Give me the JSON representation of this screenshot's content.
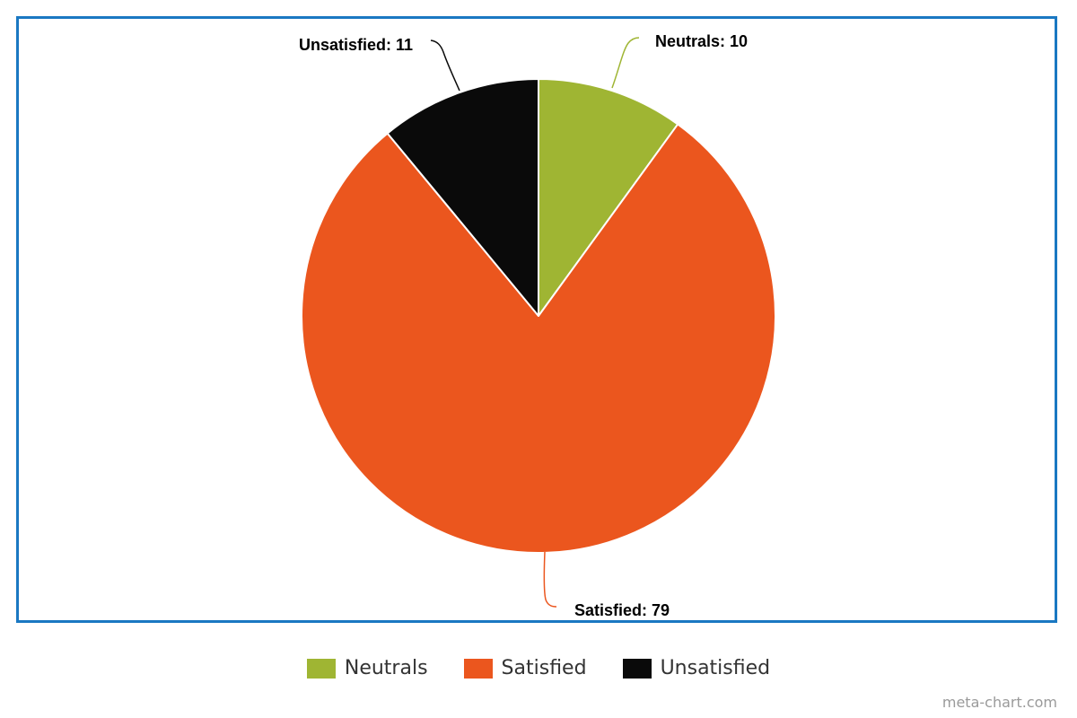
{
  "chart_data": {
    "type": "pie",
    "title": "",
    "slices": [
      {
        "label": "Neutrals",
        "value": 10,
        "color": "#9fb533",
        "data_label": "Neutrals: 10"
      },
      {
        "label": "Satisfied",
        "value": 79,
        "color": "#eb561e",
        "data_label": "Satisfied: 79"
      },
      {
        "label": "Unsatisfied",
        "value": 11,
        "color": "#0a0a0a",
        "data_label": "Unsatisfied: 11"
      }
    ],
    "legend_placement": "bottom"
  },
  "frame_color": "#1a78c2",
  "credit": "meta-chart.com"
}
